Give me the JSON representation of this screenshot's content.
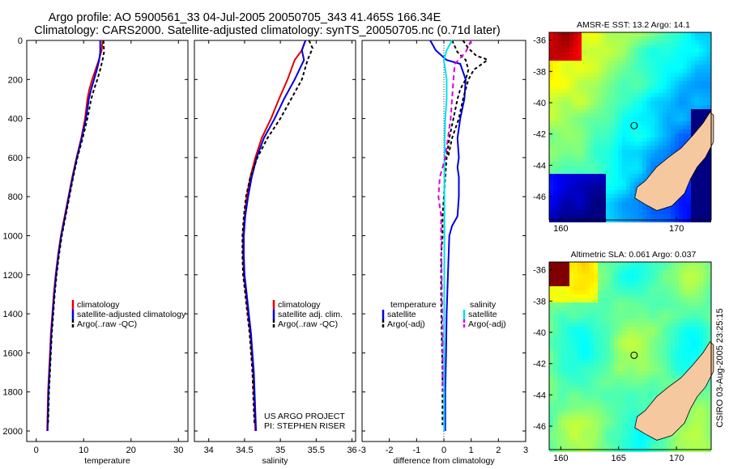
{
  "header": {
    "line1": "Argo profile: AO 5900561_33 04-Jul-2005 20050705_343 41.465S 166.34E",
    "line2": "Climatology: CARS2000. Satellite-adjusted climatology: synTS_20050705.nc (0.71d later)"
  },
  "colors": {
    "climatology": "#e00000",
    "satellite": "#0000e0",
    "argo": "#000000",
    "sal_satellite": "#00e0f0",
    "sal_argo": "#e000e0",
    "land": "#f5c8a0"
  },
  "chart_data": [
    {
      "type": "line",
      "panel": "temperature",
      "xlabel": "temperature",
      "xlim": [
        -2,
        32
      ],
      "xticks": [
        0,
        10,
        20,
        30
      ],
      "ylim": [
        0,
        2050
      ],
      "yticks": [
        0,
        200,
        400,
        600,
        800,
        1000,
        1200,
        1400,
        1600,
        1800,
        2000
      ],
      "series": [
        {
          "name": "climatology",
          "color": "#e00000",
          "dash": "",
          "points": [
            [
              14,
              0
            ],
            [
              13.8,
              50
            ],
            [
              13.2,
              100
            ],
            [
              12.5,
              150
            ],
            [
              11.8,
              200
            ],
            [
              11.2,
              250
            ],
            [
              10.8,
              300
            ],
            [
              10.3,
              400
            ],
            [
              9.5,
              500
            ],
            [
              8.5,
              600
            ],
            [
              7.6,
              700
            ],
            [
              6.8,
              800
            ],
            [
              6.0,
              900
            ],
            [
              5.2,
              1000
            ],
            [
              4.6,
              1100
            ],
            [
              4.1,
              1200
            ],
            [
              3.7,
              1300
            ],
            [
              3.4,
              1400
            ],
            [
              3.1,
              1500
            ],
            [
              2.9,
              1600
            ],
            [
              2.7,
              1700
            ],
            [
              2.5,
              1800
            ],
            [
              2.4,
              1900
            ],
            [
              2.3,
              2000
            ]
          ]
        },
        {
          "name": "satellite-adjusted climatology",
          "color": "#0000e0",
          "dash": "",
          "points": [
            [
              13.5,
              0
            ],
            [
              13.5,
              60
            ],
            [
              13.3,
              100
            ],
            [
              12.8,
              150
            ],
            [
              12.2,
              200
            ],
            [
              11.6,
              250
            ],
            [
              11.1,
              300
            ],
            [
              10.5,
              400
            ],
            [
              9.6,
              500
            ],
            [
              8.6,
              600
            ],
            [
              7.7,
              700
            ],
            [
              6.9,
              800
            ],
            [
              6.1,
              900
            ],
            [
              5.3,
              1000
            ],
            [
              4.7,
              1100
            ],
            [
              4.2,
              1200
            ],
            [
              3.8,
              1300
            ],
            [
              3.5,
              1400
            ],
            [
              3.2,
              1500
            ],
            [
              3.0,
              1600
            ],
            [
              2.8,
              1700
            ],
            [
              2.6,
              1800
            ],
            [
              2.5,
              1900
            ],
            [
              2.4,
              2000
            ]
          ]
        },
        {
          "name": "Argo(..raw -QC)",
          "color": "#000000",
          "dash": "4,3",
          "points": [
            [
              14.2,
              0
            ],
            [
              14.3,
              60
            ],
            [
              14.0,
              100
            ],
            [
              13.5,
              150
            ],
            [
              12.9,
              200
            ],
            [
              12.2,
              250
            ],
            [
              11.6,
              300
            ],
            [
              10.8,
              400
            ],
            [
              9.8,
              500
            ],
            [
              8.7,
              600
            ],
            [
              7.8,
              700
            ],
            [
              7.0,
              800
            ],
            [
              6.2,
              900
            ],
            [
              5.4,
              1000
            ],
            [
              4.8,
              1100
            ],
            [
              4.3,
              1200
            ],
            [
              3.9,
              1300
            ],
            [
              3.6,
              1400
            ],
            [
              3.3,
              1500
            ],
            [
              3.1,
              1600
            ],
            [
              2.9,
              1700
            ],
            [
              2.7,
              1800
            ],
            [
              2.6,
              1900
            ],
            [
              2.5,
              1970
            ]
          ]
        }
      ],
      "legend": [
        "climatology",
        "satellite-adjusted climatology",
        "Argo(..raw -QC)"
      ]
    },
    {
      "type": "line",
      "panel": "salinity",
      "xlabel": "salinity",
      "xlim": [
        33.8,
        36.05
      ],
      "xticks": [
        34,
        34.5,
        35,
        35.5,
        36
      ],
      "ylim": [
        0,
        2050
      ],
      "series": [
        {
          "name": "climatology",
          "color": "#e00000",
          "dash": "",
          "points": [
            [
              35.35,
              0
            ],
            [
              35.3,
              50
            ],
            [
              35.2,
              100
            ],
            [
              35.1,
              200
            ],
            [
              34.98,
              300
            ],
            [
              34.87,
              400
            ],
            [
              34.74,
              500
            ],
            [
              34.65,
              600
            ],
            [
              34.58,
              700
            ],
            [
              34.53,
              800
            ],
            [
              34.5,
              900
            ],
            [
              34.48,
              1000
            ],
            [
              34.48,
              1100
            ],
            [
              34.49,
              1200
            ],
            [
              34.52,
              1300
            ],
            [
              34.55,
              1400
            ],
            [
              34.58,
              1500
            ],
            [
              34.6,
              1600
            ],
            [
              34.62,
              1700
            ],
            [
              34.63,
              1800
            ],
            [
              34.64,
              1900
            ],
            [
              34.65,
              2000
            ]
          ]
        },
        {
          "name": "satellite adj. clim.",
          "color": "#0000e0",
          "dash": "",
          "points": [
            [
              35.35,
              0
            ],
            [
              35.3,
              50
            ],
            [
              35.33,
              100
            ],
            [
              35.2,
              200
            ],
            [
              35.05,
              300
            ],
            [
              34.92,
              400
            ],
            [
              34.77,
              500
            ],
            [
              34.67,
              600
            ],
            [
              34.6,
              700
            ],
            [
              34.55,
              800
            ],
            [
              34.51,
              900
            ],
            [
              34.49,
              1000
            ],
            [
              34.49,
              1100
            ],
            [
              34.5,
              1200
            ],
            [
              34.53,
              1300
            ],
            [
              34.56,
              1400
            ],
            [
              34.59,
              1500
            ],
            [
              34.61,
              1600
            ],
            [
              34.63,
              1700
            ],
            [
              34.64,
              1800
            ],
            [
              34.65,
              1900
            ],
            [
              34.66,
              2000
            ]
          ]
        },
        {
          "name": "Argo(..raw -QC)",
          "color": "#000000",
          "dash": "4,3",
          "points": [
            [
              35.4,
              0
            ],
            [
              35.45,
              40
            ],
            [
              35.38,
              100
            ],
            [
              35.3,
              200
            ],
            [
              35.15,
              300
            ],
            [
              35.0,
              400
            ],
            [
              34.82,
              500
            ],
            [
              34.68,
              600
            ],
            [
              34.58,
              700
            ],
            [
              34.52,
              800
            ],
            [
              34.49,
              900
            ],
            [
              34.47,
              1000
            ],
            [
              34.47,
              1100
            ],
            [
              34.48,
              1200
            ],
            [
              34.51,
              1300
            ],
            [
              34.54,
              1400
            ],
            [
              34.57,
              1500
            ],
            [
              34.59,
              1600
            ],
            [
              34.61,
              1700
            ],
            [
              34.62,
              1800
            ],
            [
              34.63,
              1900
            ],
            [
              34.64,
              1970
            ]
          ]
        }
      ],
      "legend": [
        "climatology",
        "satellite adj. clim.",
        "Argo(..raw -QC)"
      ],
      "annotation": [
        "US ARGO PROJECT",
        "PI: STEPHEN RISER"
      ]
    },
    {
      "type": "line",
      "panel": "difference",
      "xlabel": "difference from climatology",
      "xlim": [
        -3,
        3
      ],
      "xticks": [
        -3,
        -2,
        -1,
        0,
        1,
        2,
        3
      ],
      "ylim": [
        0,
        2050
      ],
      "series": [
        {
          "name": "temperature satellite",
          "color": "#0000e0",
          "dash": "",
          "points": [
            [
              -0.5,
              0
            ],
            [
              -0.3,
              50
            ],
            [
              0.1,
              100
            ],
            [
              0.6,
              120
            ],
            [
              0.8,
              200
            ],
            [
              0.75,
              300
            ],
            [
              0.6,
              400
            ],
            [
              0.5,
              500
            ],
            [
              0.55,
              600
            ],
            [
              0.5,
              650
            ],
            [
              0.55,
              700
            ],
            [
              0.55,
              800
            ],
            [
              0.5,
              900
            ],
            [
              0.3,
              950
            ],
            [
              0.2,
              1000
            ],
            [
              0.15,
              1200
            ],
            [
              0.1,
              1400
            ],
            [
              0.08,
              1600
            ],
            [
              0.05,
              1800
            ],
            [
              0.05,
              2000
            ]
          ]
        },
        {
          "name": "temperature Argo(-adj)",
          "color": "#000000",
          "dash": "4,3",
          "points": [
            [
              0.3,
              0
            ],
            [
              0.5,
              60
            ],
            [
              0.8,
              100
            ],
            [
              0.9,
              150
            ],
            [
              0.8,
              200
            ],
            [
              0.6,
              250
            ],
            [
              0.5,
              300
            ],
            [
              0.35,
              400
            ],
            [
              0.2,
              500
            ],
            [
              0.1,
              600
            ],
            [
              0.05,
              700
            ],
            [
              0.0,
              800
            ],
            [
              -0.05,
              900
            ],
            [
              -0.05,
              1000
            ],
            [
              -0.1,
              1100
            ],
            [
              -0.1,
              1300
            ],
            [
              -0.08,
              1500
            ],
            [
              -0.05,
              1700
            ],
            [
              -0.05,
              1900
            ],
            [
              -0.05,
              1970
            ]
          ]
        },
        {
          "name": "salinity satellite",
          "color": "#00e0f0",
          "dash": "",
          "points": [
            [
              0.3,
              0
            ],
            [
              0.1,
              50
            ],
            [
              0.0,
              100
            ],
            [
              0.1,
              200
            ],
            [
              0.1,
              300
            ],
            [
              0.05,
              400
            ],
            [
              0.03,
              500
            ],
            [
              0.02,
              700
            ],
            [
              0.02,
              1000
            ],
            [
              0.01,
              1500
            ],
            [
              0.01,
              2000
            ]
          ]
        },
        {
          "name": "salinity Argo(-adj)",
          "color": "#e000e0",
          "dash": "6,4",
          "points": [
            [
              1.0,
              0
            ],
            [
              0.8,
              60
            ],
            [
              0.4,
              120
            ],
            [
              0.35,
              200
            ],
            [
              0.3,
              300
            ],
            [
              0.25,
              400
            ],
            [
              0.15,
              500
            ],
            [
              0.05,
              600
            ],
            [
              -0.15,
              700
            ],
            [
              -0.2,
              800
            ],
            [
              -0.1,
              900
            ],
            [
              -0.1,
              1000
            ],
            [
              -0.08,
              1200
            ],
            [
              -0.05,
              1500
            ],
            [
              -0.05,
              1700
            ],
            [
              -0.05,
              1800
            ]
          ]
        },
        {
          "name": "salinity Argo raw",
          "color": "#000000",
          "dash": "4,3",
          "points": [
            [
              0.7,
              0
            ],
            [
              0.9,
              40
            ],
            [
              1.2,
              80
            ],
            [
              1.45,
              90
            ],
            [
              1.6,
              100
            ],
            [
              1.1,
              150
            ],
            [
              0.9,
              200
            ],
            [
              0.7,
              300
            ],
            [
              0.55,
              400
            ],
            [
              0.3,
              500
            ],
            [
              0.15,
              600
            ]
          ]
        }
      ],
      "legend_left_title": "temperature",
      "legend_left": [
        "satellite",
        "Argo(-adj)"
      ],
      "legend_right_title": "salinity",
      "legend_right": [
        "satellite",
        "Argo(-adj)"
      ]
    },
    {
      "type": "heatmap",
      "panel": "sst_map",
      "title": "AMSR-E SST: 13.2 Argo: 14.1",
      "xticks": [
        160,
        170
      ],
      "xlim": [
        159,
        173
      ],
      "yticks": [
        -36,
        -38,
        -40,
        -42,
        -44,
        -46
      ],
      "ylim": [
        -47.5,
        -35.5
      ],
      "marker": [
        166.34,
        -41.465
      ]
    },
    {
      "type": "heatmap",
      "panel": "sla_map",
      "title": "Altimetric SLA: 0.061 Argo: 0.037",
      "xticks": [
        160,
        165,
        170
      ],
      "xlim": [
        159,
        173
      ],
      "yticks": [
        -36,
        -38,
        -40,
        -42,
        -44,
        -46
      ],
      "ylim": [
        -47.5,
        -35.5
      ],
      "marker": [
        166.34,
        -41.465
      ]
    }
  ],
  "credit": "CSIRO 03-Aug-2005 23:25:15"
}
